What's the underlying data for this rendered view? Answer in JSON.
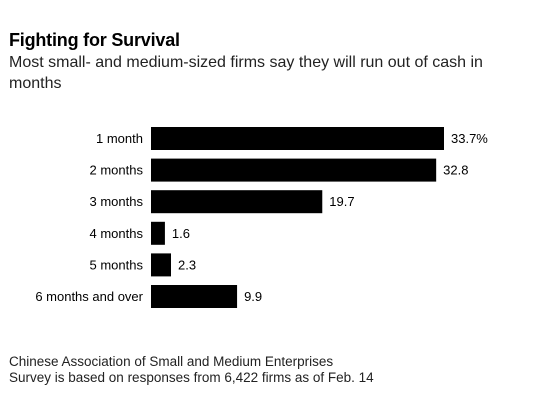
{
  "header": {
    "title": "Fighting for Survival",
    "subtitle": "Most small- and medium-sized firms say they will run out of cash in months"
  },
  "footer": {
    "source": "Chinese Association of Small and Medium Enterprises",
    "note": "Survey is based on responses from 6,422 firms as of Feb. 14"
  },
  "colors": {
    "bar": "#000000",
    "text": "#000000"
  },
  "chart_data": {
    "type": "bar",
    "orientation": "horizontal",
    "title": "Fighting for Survival",
    "subtitle": "Most small- and medium-sized firms say they will run out of cash in months",
    "categories": [
      "1 month",
      "2 months",
      "3 months",
      "4 months",
      "5 months",
      "6 months and over"
    ],
    "values": [
      33.7,
      32.8,
      19.7,
      1.6,
      2.3,
      9.9
    ],
    "value_labels": [
      "33.7%",
      "32.8",
      "19.7",
      "1.6",
      "2.3",
      "9.9"
    ],
    "xlim": [
      0,
      33.7
    ],
    "grid": false,
    "legend": "none"
  }
}
